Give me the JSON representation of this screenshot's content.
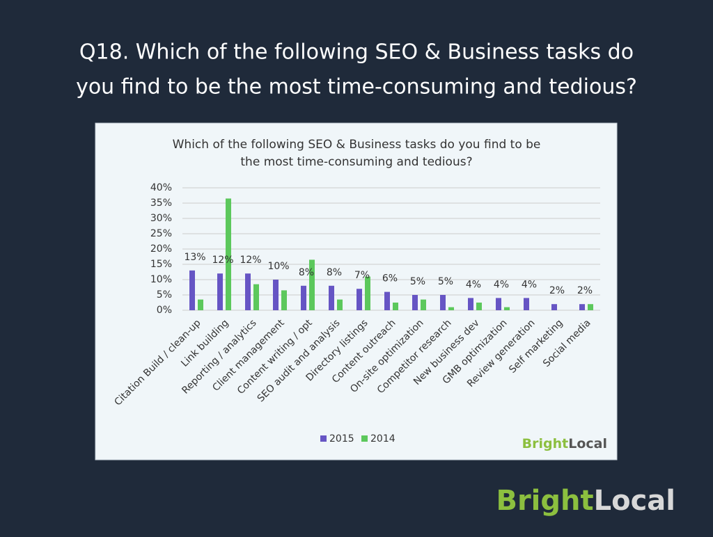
{
  "slide_title": [
    "Q18. Which of the following SEO & Business tasks do",
    "you find to be the most time-consuming and tedious?"
  ],
  "chart_data": {
    "type": "bar",
    "title": [
      "Which of the following SEO & Business tasks do you find to be",
      "the most time-consuming and tedious?"
    ],
    "categories": [
      "Citation Build / clean-up",
      "Link building",
      "Reporting / analytics",
      "Client management",
      "Content writing / opt",
      "SEO audit and analysis",
      "Directory listings",
      "Content outreach",
      "On-site optimization",
      "Competitor research",
      "New business dev",
      "GMB optimization",
      "Review generation",
      "Self marketing",
      "Social media"
    ],
    "series": [
      {
        "name": "2015",
        "color": "#6655c4",
        "values": [
          13,
          12,
          12,
          10,
          8,
          8,
          7,
          6,
          5,
          5,
          4,
          4,
          4,
          2,
          2
        ],
        "value_labels": [
          "13%",
          "12%",
          "12%",
          "10%",
          "8%",
          "8%",
          "7%",
          "6%",
          "5%",
          "5%",
          "4%",
          "4%",
          "4%",
          "2%",
          "2%"
        ]
      },
      {
        "name": "2014",
        "color": "#5cc85c",
        "values": [
          3.5,
          36.5,
          8.5,
          6.5,
          16.5,
          3.5,
          11,
          2.5,
          3.5,
          1,
          2.5,
          1,
          0,
          0,
          2
        ]
      }
    ],
    "ylim": [
      0,
      40
    ],
    "yticks": [
      {
        "value": 0,
        "label": "0%"
      },
      {
        "value": 5,
        "label": "5%"
      },
      {
        "value": 10,
        "label": "10%"
      },
      {
        "value": 15,
        "label": "15%"
      },
      {
        "value": 20,
        "label": "20%"
      },
      {
        "value": 25,
        "label": "25%"
      },
      {
        "value": 30,
        "label": "30%"
      },
      {
        "value": 35,
        "label": "35%"
      },
      {
        "value": 40,
        "label": "40%"
      }
    ],
    "grid": true,
    "legend": "bottom"
  },
  "chart_logo": {
    "bright": "Bright",
    "local": "Local"
  },
  "slide_logo": {
    "bright": "Bright",
    "local": "Local"
  }
}
